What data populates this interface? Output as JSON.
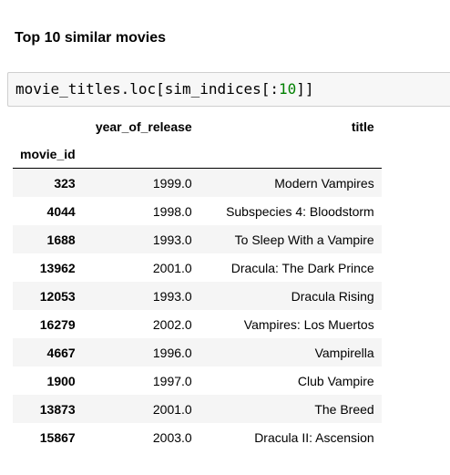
{
  "heading": "Top 10 similar movies",
  "code": {
    "prefix": "movie_titles.loc[sim_indices[:",
    "number": "10",
    "suffix": "]]"
  },
  "table": {
    "columns": [
      "year_of_release",
      "title"
    ],
    "index_name": "movie_id",
    "rows": [
      {
        "movie_id": "323",
        "year_of_release": "1999.0",
        "title": "Modern Vampires"
      },
      {
        "movie_id": "4044",
        "year_of_release": "1998.0",
        "title": "Subspecies 4: Bloodstorm"
      },
      {
        "movie_id": "1688",
        "year_of_release": "1993.0",
        "title": "To Sleep With a Vampire"
      },
      {
        "movie_id": "13962",
        "year_of_release": "2001.0",
        "title": "Dracula: The Dark Prince"
      },
      {
        "movie_id": "12053",
        "year_of_release": "1993.0",
        "title": "Dracula Rising"
      },
      {
        "movie_id": "16279",
        "year_of_release": "2002.0",
        "title": "Vampires: Los Muertos"
      },
      {
        "movie_id": "4667",
        "year_of_release": "1996.0",
        "title": "Vampirella"
      },
      {
        "movie_id": "1900",
        "year_of_release": "1997.0",
        "title": "Club Vampire"
      },
      {
        "movie_id": "13873",
        "year_of_release": "2001.0",
        "title": "The Breed"
      },
      {
        "movie_id": "15867",
        "year_of_release": "2003.0",
        "title": "Dracula II: Ascension"
      }
    ]
  },
  "colors": {
    "code_background": "#f7f7f7",
    "code_number": "#008000",
    "row_stripe": "#f5f5f5"
  }
}
